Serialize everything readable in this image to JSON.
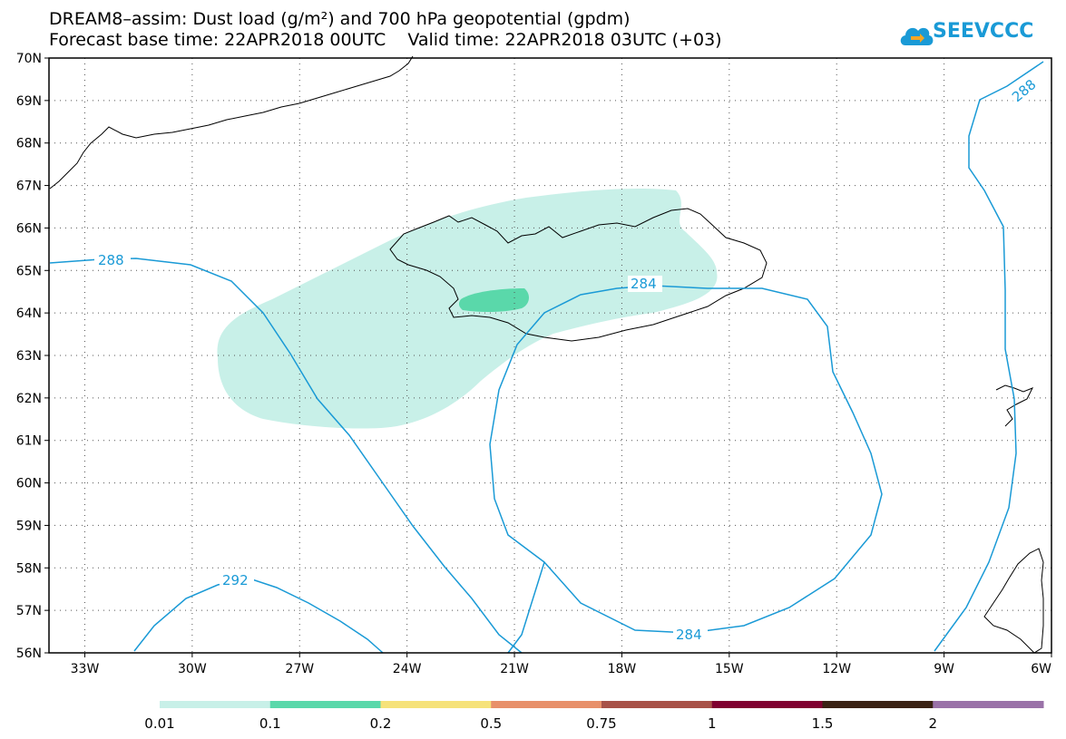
{
  "title_line1": "DREAM8–assim: Dust load (g/m²) and 700 hPa geopotential (gpdm)",
  "title_line2": "Forecast base time: 22APR2018 00UTC    Valid time: 22APR2018 03UTC (+03)",
  "logo_text": "SEEVCCC",
  "logo_icon": "cloud-icon",
  "lat_labels": [
    "70N",
    "69N",
    "68N",
    "67N",
    "66N",
    "65N",
    "64N",
    "63N",
    "62N",
    "61N",
    "60N",
    "59N",
    "58N",
    "57N",
    "56N"
  ],
  "lon_labels": [
    "33W",
    "30W",
    "27W",
    "24W",
    "21W",
    "18W",
    "15W",
    "12W",
    "9W",
    "6W"
  ],
  "contour_labels": [
    "288",
    "288",
    "284",
    "284",
    "292"
  ],
  "colorbar": {
    "labels": [
      "0.01",
      "0.1",
      "0.2",
      "0.5",
      "0.75",
      "1",
      "1.5",
      "2"
    ],
    "colors": [
      "#c8f0e8",
      "#5ad8aa",
      "#f6e27a",
      "#e8906a",
      "#a85248",
      "#800030",
      "#3a2214",
      "#9a72a8"
    ]
  },
  "colors": {
    "contour": "#1a9ad6",
    "dust_light": "#c8f0e8",
    "dust_medium": "#5ad8aa"
  }
}
